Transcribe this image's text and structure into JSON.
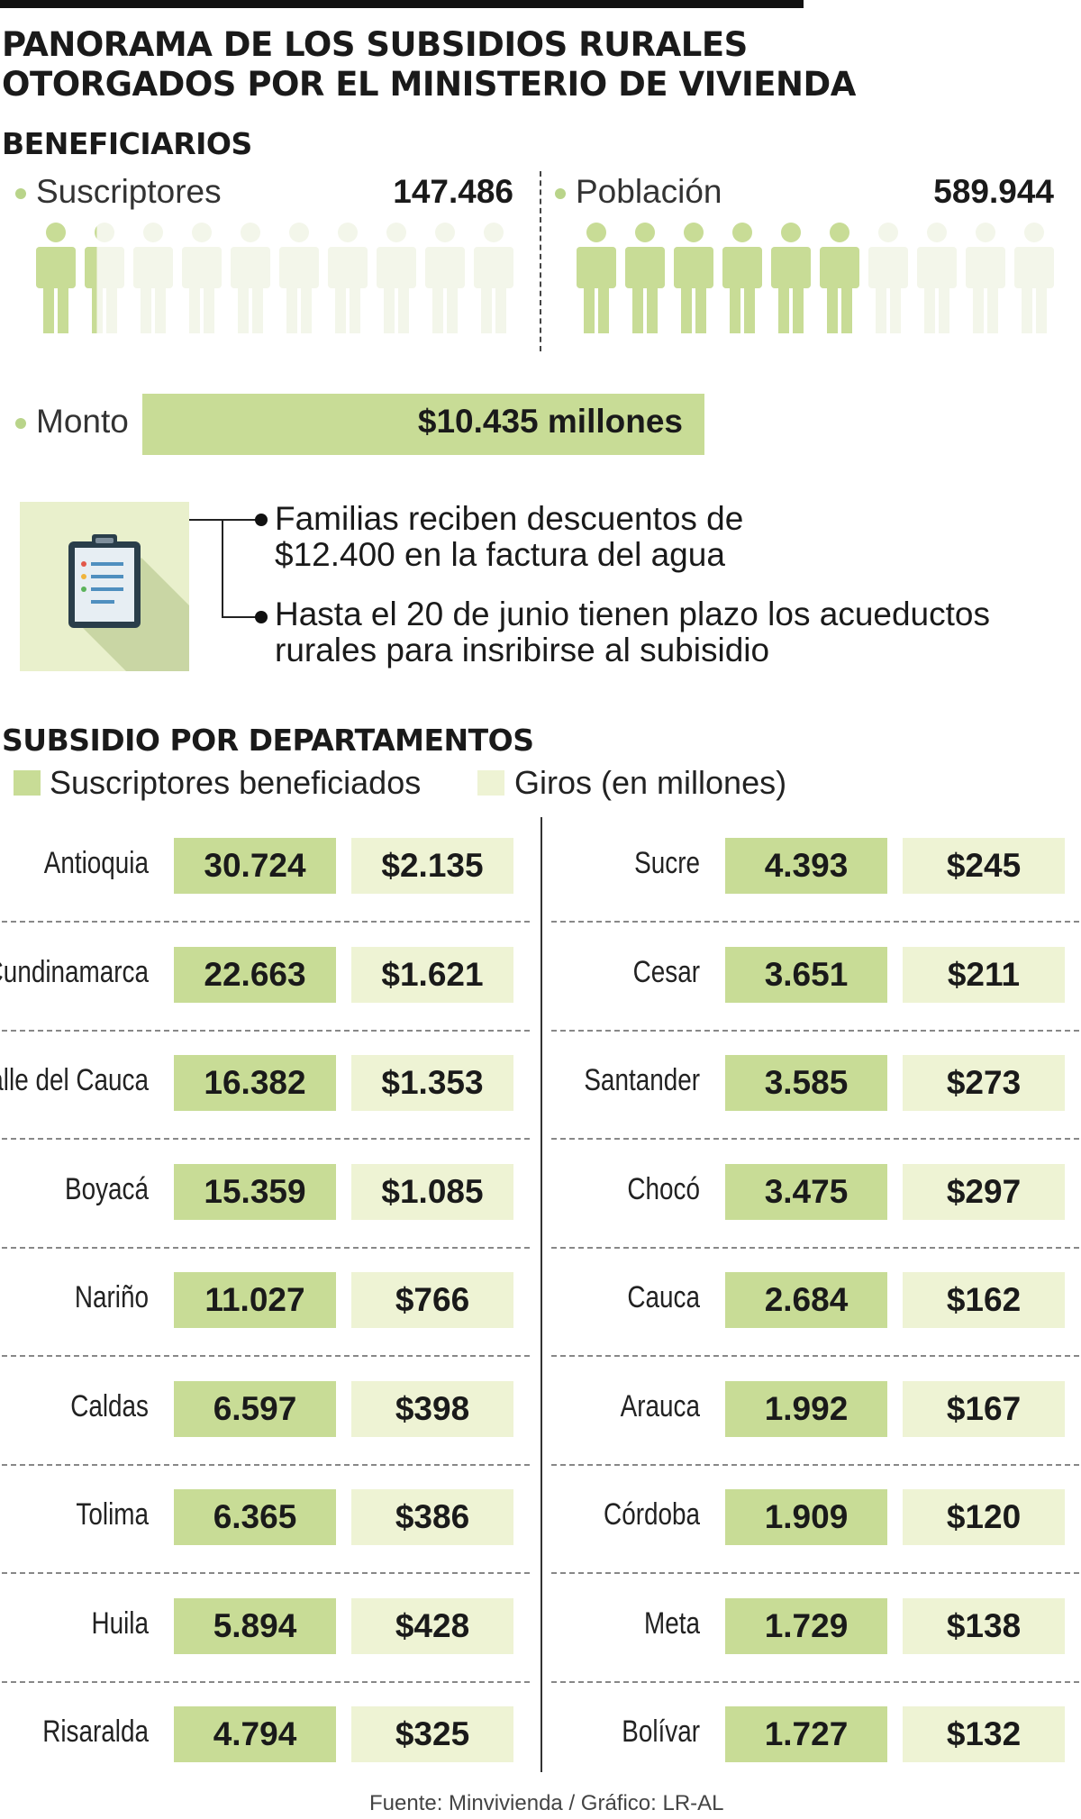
{
  "title_line1": "PANORAMA DE LOS SUBSIDIOS RURALES",
  "title_line2": "OTORGADOS POR EL MINISTERIO DE VIVIENDA",
  "beneficiarios": {
    "heading": "BENEFICIARIOS",
    "suscriptores": {
      "label": "Suscriptores",
      "value": "147.486",
      "filled_figures": 1.25,
      "total_figures": 10
    },
    "poblacion": {
      "label": "Población",
      "value": "589.944",
      "filled_figures": 6,
      "total_figures": 10
    }
  },
  "monto": {
    "label": "Monto",
    "value": "$10.435 millones"
  },
  "notes": {
    "icon": "clipboard-icon",
    "item1_line1": "Familias reciben descuentos de",
    "item1_line2": "$12.400 en la factura del agua",
    "item2_line1": "Hasta el 20 de junio tienen plazo los acueductos",
    "item2_line2": "rurales para insribirse al subisidio"
  },
  "colors": {
    "primary_green": "#c8dc96",
    "light_green": "#eef3d4",
    "figure_empty": "#f3f6ea"
  },
  "chart_data": {
    "type": "table",
    "title": "SUBSIDIO POR DEPARTAMENTOS",
    "legend": [
      "Suscriptores beneficiados",
      "Giros (en millones)"
    ],
    "rows": [
      {
        "dept": "Antioquia",
        "suscriptores": "30.724",
        "giros": "$2.135"
      },
      {
        "dept": "Cundinamarca",
        "suscriptores": "22.663",
        "giros": "$1.621"
      },
      {
        "dept": "Valle del Cauca",
        "suscriptores": "16.382",
        "giros": "$1.353"
      },
      {
        "dept": "Boyacá",
        "suscriptores": "15.359",
        "giros": "$1.085"
      },
      {
        "dept": "Nariño",
        "suscriptores": "11.027",
        "giros": "$766"
      },
      {
        "dept": "Caldas",
        "suscriptores": "6.597",
        "giros": "$398"
      },
      {
        "dept": "Tolima",
        "suscriptores": "6.365",
        "giros": "$386"
      },
      {
        "dept": "Huila",
        "suscriptores": "5.894",
        "giros": "$428"
      },
      {
        "dept": "Risaralda",
        "suscriptores": "4.794",
        "giros": "$325"
      },
      {
        "dept": "Sucre",
        "suscriptores": "4.393",
        "giros": "$245"
      },
      {
        "dept": "Cesar",
        "suscriptores": "3.651",
        "giros": "$211"
      },
      {
        "dept": "Santander",
        "suscriptores": "3.585",
        "giros": "$273"
      },
      {
        "dept": "Chocó",
        "suscriptores": "3.475",
        "giros": "$297"
      },
      {
        "dept": "Cauca",
        "suscriptores": "2.684",
        "giros": "$162"
      },
      {
        "dept": "Arauca",
        "suscriptores": "1.992",
        "giros": "$167"
      },
      {
        "dept": "Córdoba",
        "suscriptores": "1.909",
        "giros": "$120"
      },
      {
        "dept": "Meta",
        "suscriptores": "1.729",
        "giros": "$138"
      },
      {
        "dept": "Bolívar",
        "suscriptores": "1.727",
        "giros": "$132"
      }
    ]
  },
  "source": "Fuente: Minvivienda / Gráfico: LR-AL"
}
